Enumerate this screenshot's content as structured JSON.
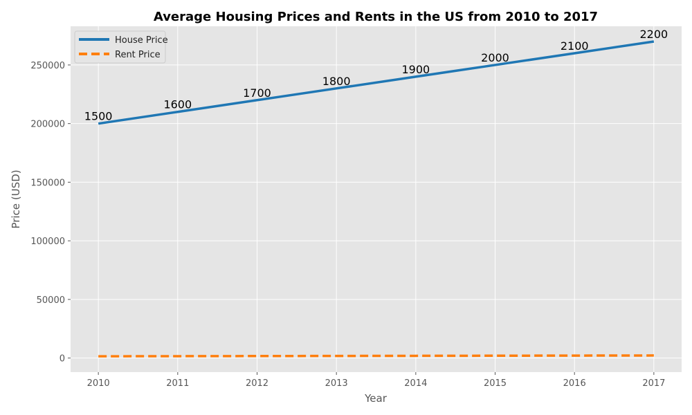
{
  "chart_data": {
    "type": "line",
    "title": "Average Housing Prices and Rents in the US from 2010 to 2017",
    "xlabel": "Year",
    "ylabel": "Price (USD)",
    "x": [
      2010,
      2011,
      2012,
      2013,
      2014,
      2015,
      2016,
      2017
    ],
    "xlim": [
      2009.65,
      2017.35
    ],
    "ylim": [
      -12000,
      283000
    ],
    "yticks": [
      0,
      50000,
      100000,
      150000,
      200000,
      250000
    ],
    "grid": true,
    "legend_position": "top-left",
    "series": [
      {
        "name": "House Price",
        "values": [
          200000,
          210000,
          220000,
          230000,
          240000,
          250000,
          260000,
          270000
        ],
        "color": "#1f77b4",
        "style": "solid"
      },
      {
        "name": "Rent Price",
        "values": [
          1500,
          1600,
          1700,
          1800,
          1900,
          2000,
          2100,
          2200
        ],
        "color": "#ff7f0e",
        "style": "dashed"
      }
    ],
    "annotations": [
      "1500",
      "1600",
      "1700",
      "1800",
      "1900",
      "2000",
      "2100",
      "2200"
    ],
    "colors": {
      "plot_background": "#e5e5e5",
      "grid": "#ffffff"
    }
  }
}
